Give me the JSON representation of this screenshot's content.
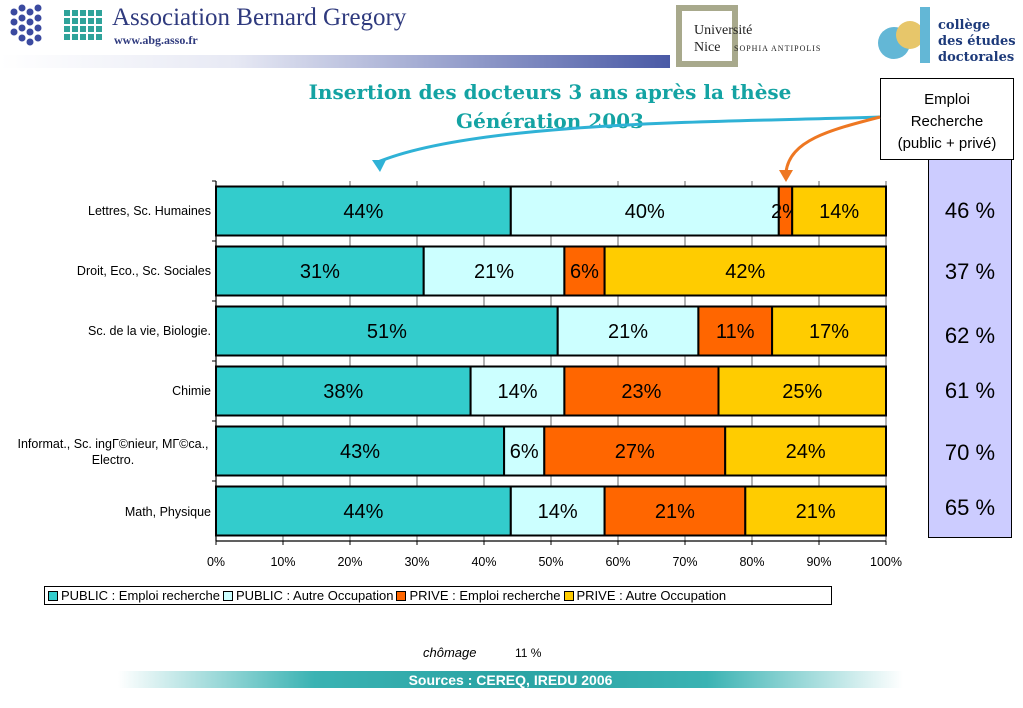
{
  "header": {
    "org_name": "Association Bernard Gregory",
    "org_url": "www.abg.asso.fr",
    "university_line1": "Université",
    "university_line2": "Nice",
    "university_sub": "SOPHIA ANTIPOLIS",
    "ced_line1": "collège",
    "ced_line2": "des études",
    "ced_line3": "doctorales"
  },
  "side_panel": {
    "heading_line1": "Emploi",
    "heading_line2": "Recherche",
    "heading_line3": "(public + privé)",
    "values": [
      "46 %",
      "37 %",
      "62 %",
      "61 %",
      "70 %",
      "65 %"
    ]
  },
  "footer": {
    "chomage_label": "chômage",
    "chomage_value": "11 %",
    "source": "Sources : CEREQ, IREDU 2006"
  },
  "chart_data": {
    "type": "bar",
    "orientation": "horizontal",
    "stacked": true,
    "title": "Insertion des docteurs 3 ans après la thèse",
    "subtitle": "Génération 2003",
    "categories": [
      "Lettres, Sc. Humaines",
      "Droit, Eco., Sc. Sociales",
      "Sc. de la vie, Biologie.",
      "Chimie",
      "Informat., Sc. ingГ©nieur, MГ©ca., Electro.",
      "Math, Physique"
    ],
    "series": [
      {
        "name": "PUBLIC :  Emploi recherche",
        "color": "#33cccc",
        "values": [
          44,
          31,
          51,
          38,
          43,
          44
        ],
        "labels": [
          "44%",
          "31%",
          "51%",
          "38%",
          "43%",
          "44%"
        ]
      },
      {
        "name": "PUBLIC : Autre Occupation",
        "color": "#ccffff",
        "values": [
          40,
          21,
          21,
          14,
          6,
          14
        ],
        "labels": [
          "40%",
          "21%",
          "21%",
          "14%",
          "6%",
          "14%"
        ]
      },
      {
        "name": "PRIVE : Emploi recherche",
        "color": "#ff6600",
        "values": [
          2,
          6,
          11,
          23,
          27,
          21
        ],
        "labels": [
          "2%",
          "6%",
          "11%",
          "23%",
          "27%",
          "21%"
        ]
      },
      {
        "name": "PRIVE : Autre Occupation",
        "color": "#ffcc00",
        "values": [
          14,
          42,
          17,
          25,
          24,
          21
        ],
        "labels": [
          "14%",
          "42%",
          "17%",
          "25%",
          "24%",
          "21%"
        ]
      }
    ],
    "xlim": [
      0,
      100
    ],
    "xticks": [
      "0%",
      "10%",
      "20%",
      "30%",
      "40%",
      "50%",
      "60%",
      "70%",
      "80%",
      "90%",
      "100%"
    ],
    "grid": true,
    "legend_position": "bottom"
  }
}
